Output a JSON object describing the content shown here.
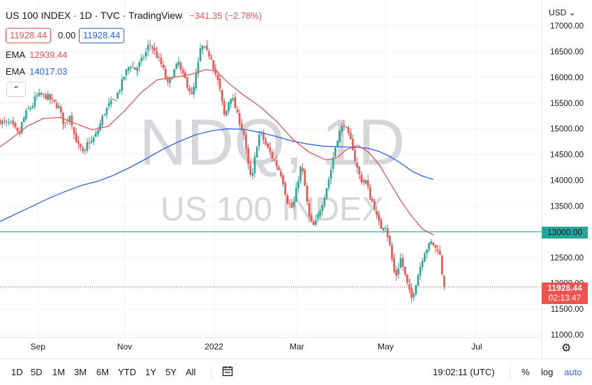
{
  "header": {
    "title": "US 100 INDEX · 1D · TVC · TradingView",
    "change": "−341.35 (−2.78%)",
    "bid": "11928.44",
    "spread": "0.00",
    "ask": "11928.44",
    "currency": "USD",
    "collapse_glyph": "⌃"
  },
  "indicators": [
    {
      "label": "EMA",
      "value": "12939.44",
      "color": "#ef5350"
    },
    {
      "label": "EMA",
      "value": "14017.03",
      "color": "#2962ff"
    }
  ],
  "watermark": {
    "symbol": "NDQ, 1D",
    "description": "US 100 INDEX"
  },
  "price_tags": {
    "line_level": "13000.00",
    "last_price": "11928.44",
    "countdown": "02:13:47"
  },
  "bottom_bar": {
    "timeframes": [
      "1D",
      "5D",
      "1M",
      "3M",
      "6M",
      "YTD",
      "1Y",
      "5Y",
      "All"
    ],
    "calendar_icon": "calendar-range-icon",
    "clock": "19:02:11 (UTC)",
    "options": [
      "%",
      "log",
      "auto"
    ],
    "settings_icon": "gear-icon"
  },
  "colors": {
    "up": "#26a69a",
    "down": "#ef5350",
    "ema_fast": "#ef5350",
    "ema_slow": "#2962ff",
    "hline": "#26a69a"
  },
  "chart_data": {
    "type": "candlestick",
    "y_ticks": [
      11000,
      11500,
      12000,
      12500,
      13000,
      13500,
      14000,
      14500,
      15000,
      15500,
      16000,
      16500,
      17000
    ],
    "ylim": [
      10900,
      17150
    ],
    "x_ticks": [
      {
        "label": "Sep",
        "t": 0.07
      },
      {
        "label": "Nov",
        "t": 0.23
      },
      {
        "label": "2022",
        "t": 0.395
      },
      {
        "label": "Mar",
        "t": 0.548
      },
      {
        "label": "May",
        "t": 0.712
      },
      {
        "label": "Jul",
        "t": 0.88
      }
    ],
    "horizontal_line": 13000,
    "last_price": 11928.44,
    "ema_fast": [
      [
        0.0,
        14650
      ],
      [
        0.02,
        14800
      ],
      [
        0.05,
        15050
      ],
      [
        0.08,
        15200
      ],
      [
        0.11,
        15220
      ],
      [
        0.14,
        15100
      ],
      [
        0.17,
        14980
      ],
      [
        0.2,
        15050
      ],
      [
        0.23,
        15350
      ],
      [
        0.26,
        15700
      ],
      [
        0.29,
        15950
      ],
      [
        0.32,
        16000
      ],
      [
        0.35,
        16050
      ],
      [
        0.38,
        16150
      ],
      [
        0.4,
        16120
      ],
      [
        0.42,
        15900
      ],
      [
        0.45,
        15650
      ],
      [
        0.48,
        15430
      ],
      [
        0.51,
        15150
      ],
      [
        0.54,
        14800
      ],
      [
        0.57,
        14550
      ],
      [
        0.6,
        14400
      ],
      [
        0.62,
        14420
      ],
      [
        0.64,
        14600
      ],
      [
        0.66,
        14680
      ],
      [
        0.68,
        14550
      ],
      [
        0.7,
        14300
      ],
      [
        0.72,
        13950
      ],
      [
        0.74,
        13600
      ],
      [
        0.76,
        13300
      ],
      [
        0.78,
        13050
      ],
      [
        0.8,
        12940
      ]
    ],
    "ema_slow": [
      [
        0.0,
        13200
      ],
      [
        0.03,
        13350
      ],
      [
        0.06,
        13500
      ],
      [
        0.09,
        13650
      ],
      [
        0.12,
        13780
      ],
      [
        0.15,
        13900
      ],
      [
        0.18,
        13980
      ],
      [
        0.21,
        14100
      ],
      [
        0.24,
        14250
      ],
      [
        0.27,
        14420
      ],
      [
        0.3,
        14600
      ],
      [
        0.33,
        14750
      ],
      [
        0.36,
        14880
      ],
      [
        0.39,
        14960
      ],
      [
        0.42,
        15000
      ],
      [
        0.45,
        14990
      ],
      [
        0.48,
        14930
      ],
      [
        0.51,
        14850
      ],
      [
        0.54,
        14760
      ],
      [
        0.57,
        14700
      ],
      [
        0.6,
        14660
      ],
      [
        0.63,
        14650
      ],
      [
        0.66,
        14640
      ],
      [
        0.68,
        14620
      ],
      [
        0.7,
        14560
      ],
      [
        0.72,
        14460
      ],
      [
        0.74,
        14330
      ],
      [
        0.76,
        14180
      ],
      [
        0.78,
        14080
      ],
      [
        0.8,
        14017
      ]
    ],
    "close_path": [
      [
        0.0,
        15150
      ],
      [
        0.01,
        15100
      ],
      [
        0.02,
        15100
      ],
      [
        0.03,
        14950
      ],
      [
        0.035,
        14850
      ],
      [
        0.04,
        15100
      ],
      [
        0.05,
        15350
      ],
      [
        0.06,
        15450
      ],
      [
        0.065,
        15600
      ],
      [
        0.07,
        15650
      ],
      [
        0.08,
        15650
      ],
      [
        0.09,
        15600
      ],
      [
        0.1,
        15500
      ],
      [
        0.11,
        15400
      ],
      [
        0.115,
        15150
      ],
      [
        0.12,
        15100
      ],
      [
        0.13,
        15300
      ],
      [
        0.135,
        14950
      ],
      [
        0.14,
        14800
      ],
      [
        0.145,
        14650
      ],
      [
        0.15,
        14600
      ],
      [
        0.155,
        14450
      ],
      [
        0.16,
        14700
      ],
      [
        0.165,
        14750
      ],
      [
        0.17,
        14750
      ],
      [
        0.18,
        14950
      ],
      [
        0.19,
        15250
      ],
      [
        0.2,
        15450
      ],
      [
        0.21,
        15550
      ],
      [
        0.22,
        15750
      ],
      [
        0.23,
        16050
      ],
      [
        0.24,
        16250
      ],
      [
        0.25,
        16150
      ],
      [
        0.26,
        16300
      ],
      [
        0.27,
        16500
      ],
      [
        0.275,
        16650
      ],
      [
        0.28,
        16600
      ],
      [
        0.29,
        16400
      ],
      [
        0.3,
        16200
      ],
      [
        0.305,
        16000
      ],
      [
        0.31,
        15850
      ],
      [
        0.32,
        16100
      ],
      [
        0.33,
        16300
      ],
      [
        0.335,
        16050
      ],
      [
        0.34,
        16000
      ],
      [
        0.35,
        15750
      ],
      [
        0.355,
        15600
      ],
      [
        0.36,
        15950
      ],
      [
        0.365,
        16200
      ],
      [
        0.37,
        16550
      ],
      [
        0.375,
        16600
      ],
      [
        0.38,
        16500
      ],
      [
        0.39,
        16400
      ],
      [
        0.395,
        16150
      ],
      [
        0.4,
        16000
      ],
      [
        0.405,
        15800
      ],
      [
        0.41,
        15500
      ],
      [
        0.415,
        15200
      ],
      [
        0.42,
        15450
      ],
      [
        0.425,
        15650
      ],
      [
        0.43,
        15550
      ],
      [
        0.44,
        15200
      ],
      [
        0.45,
        14900
      ],
      [
        0.455,
        14500
      ],
      [
        0.46,
        14150
      ],
      [
        0.465,
        14000
      ],
      [
        0.47,
        14400
      ],
      [
        0.475,
        14750
      ],
      [
        0.48,
        14950
      ],
      [
        0.49,
        14700
      ],
      [
        0.5,
        14500
      ],
      [
        0.51,
        14300
      ],
      [
        0.52,
        14100
      ],
      [
        0.525,
        13850
      ],
      [
        0.53,
        13600
      ],
      [
        0.54,
        13450
      ],
      [
        0.545,
        13700
      ],
      [
        0.55,
        14000
      ],
      [
        0.555,
        14250
      ],
      [
        0.56,
        14100
      ],
      [
        0.565,
        13700
      ],
      [
        0.57,
        13300
      ],
      [
        0.575,
        13150
      ],
      [
        0.58,
        13100
      ],
      [
        0.59,
        13400
      ],
      [
        0.6,
        13750
      ],
      [
        0.61,
        14150
      ],
      [
        0.615,
        14450
      ],
      [
        0.62,
        14700
      ],
      [
        0.625,
        14900
      ],
      [
        0.63,
        15000
      ],
      [
        0.635,
        15100
      ],
      [
        0.64,
        14950
      ],
      [
        0.645,
        14800
      ],
      [
        0.65,
        14700
      ],
      [
        0.655,
        14400
      ],
      [
        0.66,
        14200
      ],
      [
        0.665,
        14050
      ],
      [
        0.67,
        13950
      ],
      [
        0.675,
        14000
      ],
      [
        0.68,
        13800
      ],
      [
        0.685,
        13600
      ],
      [
        0.69,
        13550
      ],
      [
        0.695,
        13300
      ],
      [
        0.7,
        13150
      ],
      [
        0.705,
        13050
      ],
      [
        0.71,
        13200
      ],
      [
        0.715,
        12950
      ],
      [
        0.72,
        12700
      ],
      [
        0.725,
        12350
      ],
      [
        0.73,
        12100
      ],
      [
        0.735,
        12300
      ],
      [
        0.74,
        12500
      ],
      [
        0.745,
        12250
      ],
      [
        0.75,
        12050
      ],
      [
        0.755,
        11850
      ],
      [
        0.76,
        11700
      ],
      [
        0.765,
        11900
      ],
      [
        0.77,
        12100
      ],
      [
        0.775,
        12300
      ],
      [
        0.78,
        12500
      ],
      [
        0.785,
        12650
      ],
      [
        0.79,
        12700
      ],
      [
        0.795,
        12800
      ],
      [
        0.8,
        12750
      ],
      [
        0.805,
        12650
      ],
      [
        0.81,
        12700
      ],
      [
        0.815,
        12270
      ],
      [
        0.82,
        11928
      ]
    ]
  }
}
